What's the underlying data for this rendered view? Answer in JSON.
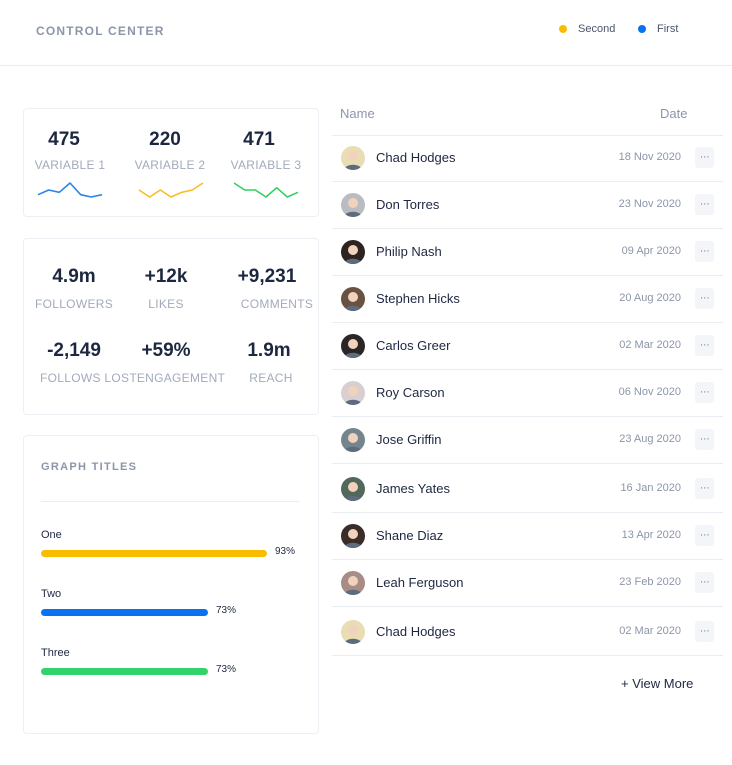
{
  "header": {
    "title": "CONTROL CENTER",
    "legend": [
      {
        "label": "Second",
        "color": "#f9bd00"
      },
      {
        "label": "First",
        "color": "#0a72f0"
      }
    ]
  },
  "variables": [
    {
      "value": "475",
      "label": "VARIABLE 1",
      "color": "#2d84e8",
      "trend": [
        3,
        5,
        4,
        8,
        3,
        2,
        3
      ]
    },
    {
      "value": "220",
      "label": "VARIABLE 2",
      "color": "#f6be22",
      "trend": [
        4,
        1,
        4,
        1,
        3,
        4,
        7
      ]
    },
    {
      "value": "471",
      "label": "VARIABLE 3",
      "color": "#31d15d",
      "trend": [
        8,
        5,
        5,
        2,
        6,
        2,
        4
      ]
    }
  ],
  "stats": [
    {
      "value": "4.9m",
      "label": "FOLLOWERS"
    },
    {
      "value": "+12k",
      "label": "LIKES"
    },
    {
      "value": "+9,231",
      "label": "COMMENTS"
    },
    {
      "value": "-2,149",
      "label": "FOLLOWS LOST"
    },
    {
      "value": "+59%",
      "label": "ENGAGEMENT"
    },
    {
      "value": "1.9m",
      "label": "REACH"
    }
  ],
  "graph": {
    "title": "GRAPH TITLES",
    "bars": [
      {
        "label": "One",
        "value": 93,
        "pct_label": "93%",
        "color": "#f9bd00"
      },
      {
        "label": "Two",
        "value": 73,
        "pct_label": "73%",
        "color": "#0a72f0"
      },
      {
        "label": "Three",
        "value": 73,
        "pct_label": "73%",
        "color": "#31d36a"
      }
    ]
  },
  "table": {
    "columns": {
      "name": "Name",
      "date": "Date"
    },
    "rows": [
      {
        "name": "Chad Hodges",
        "date": "18 Nov 2020",
        "avatar": "#e8ddb3"
      },
      {
        "name": "Don Torres",
        "date": "23 Nov 2020",
        "avatar": "#b9bcc1"
      },
      {
        "name": "Philip Nash",
        "date": "09 Apr 2020",
        "avatar": "#2e2320"
      },
      {
        "name": "Stephen Hicks",
        "date": "20 Aug 2020",
        "avatar": "#6a5243"
      },
      {
        "name": "Carlos Greer",
        "date": "02 Mar 2020",
        "avatar": "#2a2626"
      },
      {
        "name": "Roy Carson",
        "date": "06 Nov 2020",
        "avatar": "#d9cfd0"
      },
      {
        "name": "Jose Griffin",
        "date": "23 Aug 2020",
        "avatar": "#75858d"
      },
      {
        "name": "James Yates",
        "date": "16 Jan 2020",
        "avatar": "#52685a"
      },
      {
        "name": "Shane Diaz",
        "date": "13 Apr 2020",
        "avatar": "#3a2c28"
      },
      {
        "name": "Leah Ferguson",
        "date": "23 Feb 2020",
        "avatar": "#a78c88"
      },
      {
        "name": "Chad Hodges",
        "date": "02 Mar 2020",
        "avatar": "#e8ddb3"
      }
    ],
    "more_label": "···",
    "view_more": "+ View More"
  }
}
